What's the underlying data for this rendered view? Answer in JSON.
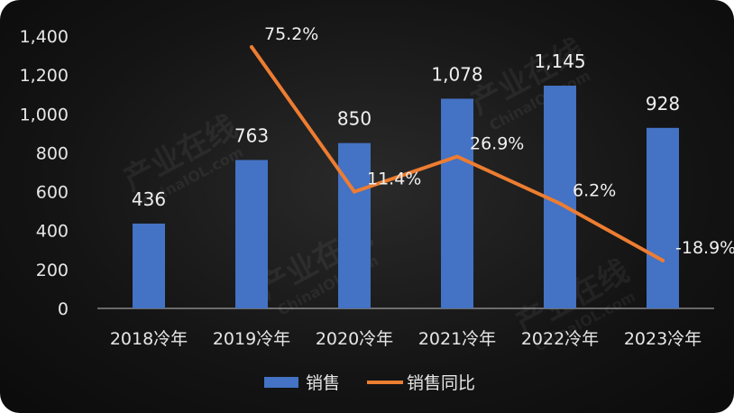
{
  "chart_data": {
    "type": "bar",
    "categories": [
      "2018冷年",
      "2019冷年",
      "2020冷年",
      "2021冷年",
      "2022冷年",
      "2023冷年"
    ],
    "series": [
      {
        "name": "销售",
        "type": "bar",
        "values": [
          436,
          763,
          850,
          1078,
          1145,
          928
        ],
        "labels": [
          "436",
          "763",
          "850",
          "1,078",
          "1,145",
          "928"
        ]
      },
      {
        "name": "销售同比",
        "type": "line",
        "values": [
          null,
          75.2,
          11.4,
          26.9,
          6.2,
          -18.9
        ],
        "labels": [
          "",
          "75.2%",
          "11.4%",
          "26.9%",
          "6.2%",
          "-18.9%"
        ]
      }
    ],
    "yticks": [
      "0",
      "200",
      "400",
      "600",
      "800",
      "1,000",
      "1,200",
      "1,400"
    ],
    "ylim": [
      0,
      1400
    ],
    "y2lim": [
      -40,
      80
    ],
    "legend": "bottom",
    "grid": false,
    "colors": {
      "bar": "#4472C4",
      "line": "#ED7D31"
    }
  },
  "watermark": {
    "brand": "产业在线",
    "site": "ChinaIOL.com"
  }
}
